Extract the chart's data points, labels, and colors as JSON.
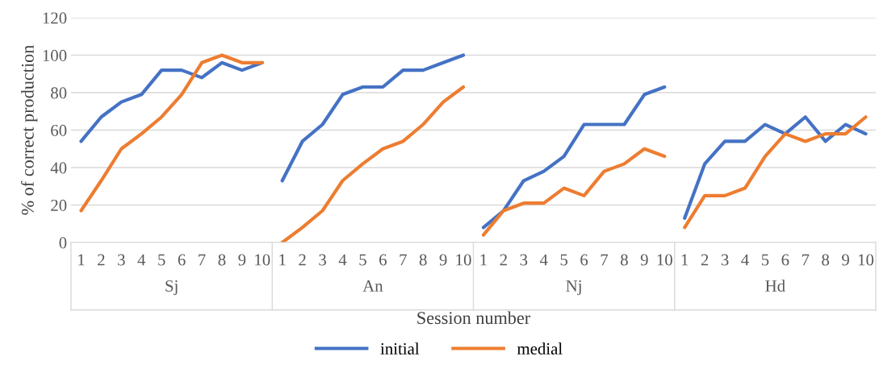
{
  "chart_data": {
    "type": "line",
    "xlabel": "Session number",
    "ylabel": "% of correct production",
    "categories": [
      "1",
      "2",
      "3",
      "4",
      "5",
      "6",
      "7",
      "8",
      "9",
      "10",
      "1",
      "2",
      "3",
      "4",
      "5",
      "6",
      "7",
      "8",
      "9",
      "10",
      "1",
      "2",
      "3",
      "4",
      "5",
      "6",
      "7",
      "8",
      "9",
      "10",
      "1",
      "2",
      "3",
      "4",
      "5",
      "6",
      "7",
      "8",
      "9",
      "10"
    ],
    "annotations": [
      "Sj",
      "An",
      "Nj",
      "Hd"
    ],
    "series": [
      {
        "name": "initial",
        "color": "#4472c4",
        "values": [
          54,
          67,
          75,
          79,
          92,
          92,
          88,
          96,
          92,
          96,
          33,
          54,
          63,
          79,
          83,
          83,
          92,
          92,
          96,
          100,
          8,
          17,
          33,
          38,
          46,
          63,
          63,
          63,
          79,
          83,
          13,
          42,
          54,
          54,
          63,
          58,
          67,
          54,
          63,
          58
        ]
      },
      {
        "name": "medial",
        "color": "#ed7d31",
        "values": [
          17,
          33,
          50,
          58,
          67,
          79,
          96,
          100,
          96,
          96,
          0,
          8,
          17,
          33,
          42,
          50,
          54,
          63,
          75,
          83,
          4,
          17,
          21,
          21,
          29,
          25,
          38,
          42,
          50,
          46,
          8,
          25,
          25,
          29,
          46,
          58,
          54,
          58,
          58,
          67
        ]
      }
    ],
    "ylim": [
      0,
      120
    ],
    "yticks": [
      0,
      20,
      40,
      60,
      80,
      100,
      120
    ],
    "grid": "y",
    "legend": "bottom",
    "marker": "none",
    "line_style": "solid"
  }
}
